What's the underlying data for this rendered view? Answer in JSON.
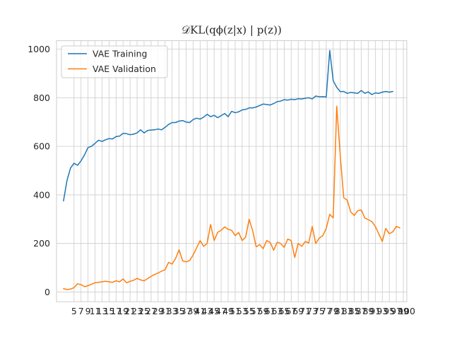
{
  "chart_data": {
    "type": "line",
    "title": "𝒟KL(qϕ(z|x) | p(z))",
    "xlabel": "",
    "ylabel": "",
    "ylim": [
      -40,
      1035
    ],
    "yticks": [
      0,
      200,
      400,
      600,
      800,
      1000
    ],
    "xtick_labels": [
      "5",
      "7",
      "9",
      "11",
      "13",
      "15",
      "17",
      "19",
      "21",
      "23",
      "25",
      "27",
      "29",
      "31",
      "33",
      "35",
      "37",
      "39",
      "41",
      "43",
      "45",
      "47",
      "49",
      "51",
      "53",
      "55",
      "57",
      "59",
      "61",
      "63",
      "65",
      "67",
      "69",
      "71",
      "73",
      "75",
      "77",
      "79",
      "81",
      "83",
      "85",
      "87",
      "89",
      "91",
      "93",
      "95",
      "97",
      "99",
      "100"
    ],
    "grid": true,
    "legend_position": "upper-left",
    "series": [
      {
        "name": "VAE Training",
        "color": "#1f77b4",
        "values": [
          375,
          460,
          510,
          530,
          522,
          540,
          565,
          595,
          600,
          612,
          625,
          620,
          627,
          632,
          630,
          640,
          642,
          653,
          652,
          648,
          650,
          655,
          668,
          655,
          665,
          667,
          668,
          671,
          668,
          678,
          690,
          698,
          698,
          704,
          706,
          700,
          698,
          710,
          716,
          712,
          720,
          732,
          722,
          728,
          718,
          726,
          735,
          722,
          744,
          738,
          742,
          750,
          752,
          758,
          758,
          762,
          768,
          774,
          772,
          770,
          776,
          784,
          786,
          792,
          790,
          794,
          792,
          796,
          795,
          798,
          800,
          795,
          807,
          804,
          805,
          803,
          995,
          870,
          843,
          825,
          826,
          818,
          822,
          820,
          818,
          830,
          818,
          824,
          813,
          820,
          818,
          823,
          826,
          823,
          826
        ]
      },
      {
        "name": "VAE Validation",
        "color": "#ff7f0e",
        "values": [
          14,
          10,
          12,
          18,
          34,
          30,
          22,
          26,
          32,
          38,
          40,
          42,
          44,
          42,
          40,
          46,
          42,
          54,
          38,
          44,
          48,
          56,
          50,
          46,
          55,
          64,
          72,
          78,
          86,
          92,
          122,
          115,
          138,
          174,
          128,
          124,
          130,
          152,
          182,
          212,
          188,
          200,
          278,
          212,
          246,
          254,
          268,
          258,
          254,
          232,
          245,
          212,
          226,
          300,
          252,
          186,
          195,
          178,
          212,
          204,
          172,
          205,
          200,
          184,
          218,
          212,
          142,
          200,
          188,
          208,
          202,
          270,
          200,
          222,
          232,
          262,
          320,
          305,
          765,
          560,
          388,
          378,
          330,
          315,
          335,
          338,
          305,
          298,
          290,
          270,
          240,
          208,
          262,
          240,
          248,
          270,
          264
        ]
      }
    ]
  }
}
